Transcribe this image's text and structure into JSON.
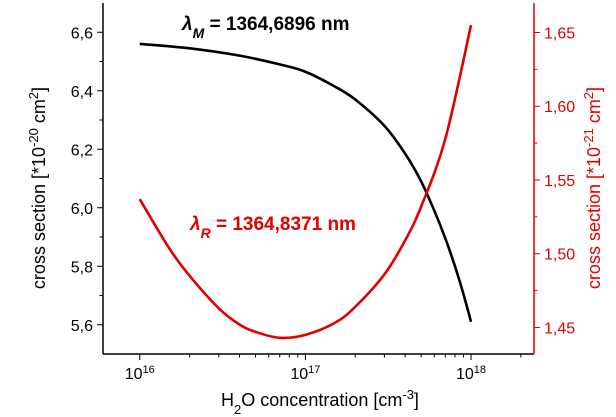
{
  "chart_data": {
    "type": "line",
    "x_scale": "log",
    "grid": false,
    "legend": "none",
    "x_range": [
      6000000000000000.0,
      2.4e+18
    ],
    "x_ticks": [
      1e+16,
      1e+17,
      1e+18
    ],
    "x_tick_labels": [
      {
        "base": "10",
        "exp": "16"
      },
      {
        "base": "10",
        "exp": "17"
      },
      {
        "base": "10",
        "exp": "18"
      }
    ],
    "xlabel": {
      "pre": "H",
      "sub": "2",
      "mid": "O concentration [cm",
      "sup": "-3",
      "post": "]"
    },
    "y_left": {
      "label": {
        "pre": "cross section [*10",
        "sup": "-20",
        "mid": " cm",
        "sup2": "2",
        "post": "]"
      },
      "range": [
        5.5,
        6.7
      ],
      "ticks": [
        5.6,
        5.8,
        6.0,
        6.2,
        6.4,
        6.6
      ],
      "tick_labels": [
        "5,6",
        "5,8",
        "6,0",
        "6,2",
        "6,4",
        "6,6"
      ],
      "color": "#000000"
    },
    "y_right": {
      "label": {
        "pre": "cross section [*10",
        "sup": "-21",
        "mid": " cm",
        "sup2": "2",
        "post": "]"
      },
      "range": [
        1.432,
        1.67
      ],
      "ticks": [
        1.45,
        1.5,
        1.55,
        1.6,
        1.65
      ],
      "tick_labels": [
        "1,45",
        "1,50",
        "1,55",
        "1,60",
        "1,65"
      ],
      "color": "#e00000"
    },
    "series": [
      {
        "axis": "left",
        "color": "#000000",
        "annotation": {
          "lambda": "λ",
          "sub": "M",
          "text": " = 1364,6896 nm"
        },
        "x": [
          1e+16,
          2e+16,
          4e+16,
          7e+16,
          1e+17,
          1.5e+17,
          2e+17,
          3e+17,
          4e+17,
          5e+17,
          6e+17,
          7e+17,
          8e+17,
          9e+17,
          1e+18
        ],
        "y": [
          6.56,
          6.545,
          6.52,
          6.49,
          6.465,
          6.415,
          6.37,
          6.28,
          6.185,
          6.09,
          5.99,
          5.895,
          5.8,
          5.705,
          5.61
        ]
      },
      {
        "axis": "right",
        "color": "#e00000",
        "annotation": {
          "lambda": "λ",
          "sub": "R",
          "text": " = 1364,8371 nm"
        },
        "x": [
          1e+16,
          1.5e+16,
          2e+16,
          3e+16,
          4e+16,
          5e+16,
          7e+16,
          1e+17,
          1.5e+17,
          2e+17,
          3e+17,
          4e+17,
          5e+17,
          7e+17,
          1e+18
        ],
        "y": [
          1.537,
          1.504,
          1.485,
          1.463,
          1.452,
          1.447,
          1.443,
          1.445,
          1.453,
          1.464,
          1.486,
          1.509,
          1.532,
          1.578,
          1.655
        ]
      }
    ]
  }
}
